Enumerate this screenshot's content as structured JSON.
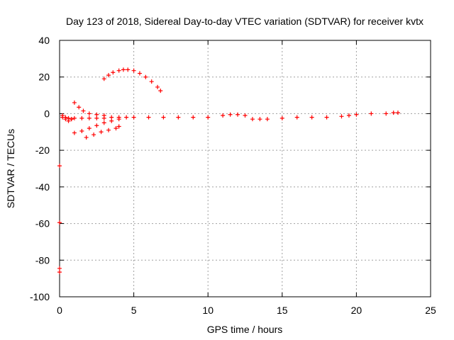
{
  "chart_data": {
    "type": "scatter",
    "title": "Day 123 of 2018, Sidereal Day-to-day VTEC variation (SDTVAR) for receiver kvtx",
    "xlabel": "GPS time / hours",
    "ylabel": "SDTVAR / TECUs",
    "xlim": [
      0,
      25
    ],
    "ylim": [
      -100,
      40
    ],
    "xticks": [
      0,
      5,
      10,
      15,
      20,
      25
    ],
    "yticks": [
      -100,
      -80,
      -60,
      -40,
      -20,
      0,
      20,
      40
    ],
    "xtick_labels": [
      "0",
      "5",
      "10",
      "15",
      "20",
      "25"
    ],
    "ytick_labels": [
      "-100",
      "-80",
      "-60",
      "-40",
      "-20",
      "0",
      "20",
      "40"
    ],
    "grid": true,
    "marker": "plus",
    "color": "#ff0000",
    "series": [
      {
        "x": [
          0.2,
          0.4,
          0.6,
          0.8,
          1.0,
          1.5,
          2.0,
          2.5,
          3.0,
          3.5,
          4.0,
          4.5,
          5.0,
          6.0,
          7.0,
          8.0,
          9.0,
          10.0,
          11.0,
          11.5,
          12.0,
          12.5,
          13.0,
          13.5,
          14.0,
          15.0,
          16.0,
          17.0,
          18.0,
          19.0,
          19.5,
          20.0,
          21.0,
          22.0,
          22.5,
          22.8
        ],
        "y": [
          -1,
          -2,
          -2.5,
          -3,
          -2.5,
          -2.5,
          -2.5,
          -2.5,
          -2.5,
          -2,
          -2,
          -2,
          -2,
          -2,
          -2,
          -2,
          -2,
          -2,
          -1,
          -0.5,
          -0.5,
          -1,
          -3,
          -3,
          -3,
          -2.5,
          -2,
          -2,
          -2,
          -1.5,
          -1,
          -0.5,
          0,
          0,
          0.5,
          0.5
        ]
      },
      {
        "x": [
          3.0,
          3.3,
          3.6,
          4.0,
          4.3,
          4.6,
          5.0,
          5.4,
          5.8,
          6.2,
          6.6,
          6.8
        ],
        "y": [
          19,
          21,
          22.5,
          23.5,
          24,
          24,
          23.5,
          22,
          20,
          17.5,
          14.5,
          12.5
        ]
      },
      {
        "x": [
          1.0,
          1.3,
          1.6,
          2.0,
          2.5,
          3.0
        ],
        "y": [
          6,
          3.5,
          1.5,
          0,
          -0.5,
          -1
        ]
      },
      {
        "x": [
          1.0,
          1.5,
          2.0,
          2.5,
          3.0,
          3.5,
          4.0
        ],
        "y": [
          -10.5,
          -9.5,
          -8,
          -6.5,
          -5,
          -4,
          -3
        ]
      },
      {
        "x": [
          1.8,
          2.3,
          2.8,
          3.3,
          3.8,
          4.0
        ],
        "y": [
          -13,
          -11.5,
          -10,
          -9,
          -8,
          -7
        ]
      },
      {
        "x": [
          0.2,
          0.4,
          0.6,
          0.8
        ],
        "y": [
          -2,
          -3,
          -4,
          -3
        ]
      },
      {
        "x": [
          0.0,
          0.0,
          0.0,
          0.0
        ],
        "y": [
          -28.5,
          -59.5,
          -84.5,
          -86.5
        ]
      }
    ]
  }
}
